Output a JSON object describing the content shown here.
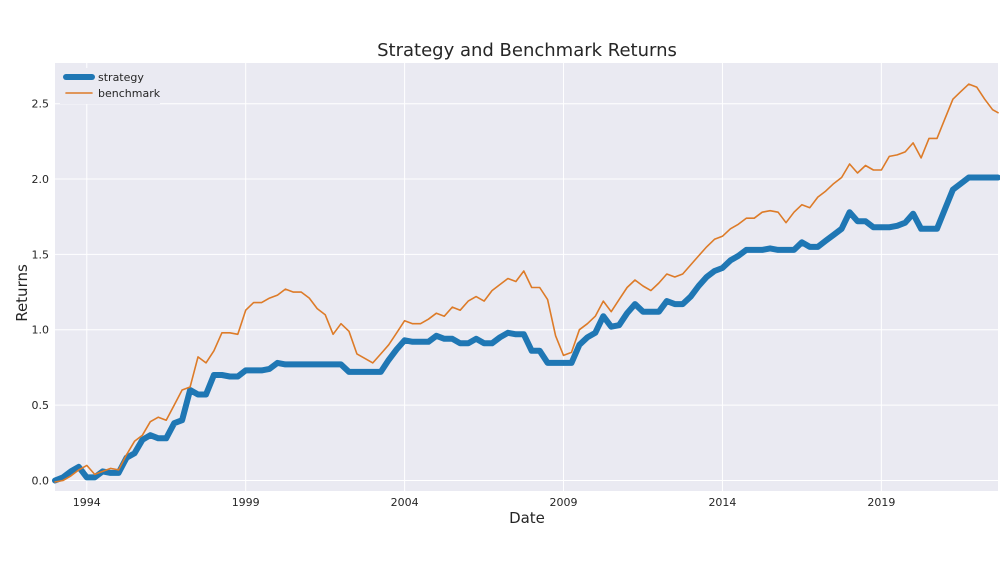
{
  "chart_data": {
    "type": "line",
    "title": "Strategy and Benchmark Returns",
    "xlabel": "Date",
    "ylabel": "Returns",
    "xlim": [
      1993.0,
      2022.67
    ],
    "ylim": [
      -0.07,
      2.77
    ],
    "xticks": [
      1994,
      1999,
      2004,
      2009,
      2014,
      2019
    ],
    "xtick_labels": [
      "1994",
      "1999",
      "2004",
      "2009",
      "2014",
      "2019"
    ],
    "yticks": [
      0.0,
      0.5,
      1.0,
      1.5,
      2.0,
      2.5
    ],
    "ytick_labels": [
      "0.0",
      "0.5",
      "1.0",
      "1.5",
      "2.0",
      "2.5"
    ],
    "grid": true,
    "legend_position": "top-left",
    "background": "#eaeaf2",
    "series": [
      {
        "name": "strategy",
        "color": "#1f77b4",
        "x": [
          1993.0,
          1993.25,
          1993.5,
          1993.75,
          1994.0,
          1994.25,
          1994.5,
          1994.75,
          1995.0,
          1995.25,
          1995.5,
          1995.75,
          1996.0,
          1996.25,
          1996.5,
          1996.75,
          1997.0,
          1997.25,
          1997.5,
          1997.75,
          1998.0,
          1998.25,
          1998.5,
          1998.75,
          1999.0,
          1999.25,
          1999.5,
          1999.75,
          2000.0,
          2000.25,
          2000.5,
          2000.75,
          2001.0,
          2001.25,
          2001.5,
          2001.75,
          2002.0,
          2002.25,
          2002.5,
          2002.75,
          2003.0,
          2003.25,
          2003.5,
          2003.75,
          2004.0,
          2004.25,
          2004.5,
          2004.75,
          2005.0,
          2005.25,
          2005.5,
          2005.75,
          2006.0,
          2006.25,
          2006.5,
          2006.75,
          2007.0,
          2007.25,
          2007.5,
          2007.75,
          2008.0,
          2008.25,
          2008.5,
          2008.75,
          2009.0,
          2009.25,
          2009.5,
          2009.75,
          2010.0,
          2010.25,
          2010.5,
          2010.75,
          2011.0,
          2011.25,
          2011.5,
          2011.75,
          2012.0,
          2012.25,
          2012.5,
          2012.75,
          2013.0,
          2013.25,
          2013.5,
          2013.75,
          2014.0,
          2014.25,
          2014.5,
          2014.75,
          2015.0,
          2015.25,
          2015.5,
          2015.75,
          2016.0,
          2016.25,
          2016.5,
          2016.75,
          2017.0,
          2017.25,
          2017.5,
          2017.75,
          2018.0,
          2018.25,
          2018.5,
          2018.75,
          2019.0,
          2019.25,
          2019.5,
          2019.75,
          2020.0,
          2020.25,
          2020.5,
          2020.75,
          2021.0,
          2021.25,
          2021.5,
          2021.75,
          2022.0,
          2022.25,
          2022.5,
          2022.67
        ],
        "values": [
          0.0,
          0.02,
          0.06,
          0.09,
          0.02,
          0.02,
          0.06,
          0.05,
          0.05,
          0.15,
          0.18,
          0.27,
          0.3,
          0.28,
          0.28,
          0.38,
          0.4,
          0.6,
          0.57,
          0.57,
          0.7,
          0.7,
          0.69,
          0.69,
          0.73,
          0.73,
          0.73,
          0.74,
          0.78,
          0.77,
          0.77,
          0.77,
          0.77,
          0.77,
          0.77,
          0.77,
          0.77,
          0.72,
          0.72,
          0.72,
          0.72,
          0.72,
          0.8,
          0.87,
          0.93,
          0.92,
          0.92,
          0.92,
          0.96,
          0.94,
          0.94,
          0.91,
          0.91,
          0.94,
          0.91,
          0.91,
          0.95,
          0.98,
          0.97,
          0.97,
          0.86,
          0.86,
          0.78,
          0.78,
          0.78,
          0.78,
          0.9,
          0.95,
          0.98,
          1.09,
          1.02,
          1.03,
          1.11,
          1.17,
          1.12,
          1.12,
          1.12,
          1.19,
          1.17,
          1.17,
          1.22,
          1.29,
          1.35,
          1.39,
          1.41,
          1.46,
          1.49,
          1.53,
          1.53,
          1.53,
          1.54,
          1.53,
          1.53,
          1.53,
          1.58,
          1.55,
          1.55,
          1.59,
          1.63,
          1.67,
          1.78,
          1.72,
          1.72,
          1.68,
          1.68,
          1.68,
          1.69,
          1.71,
          1.77,
          1.67,
          1.67,
          1.67,
          1.8,
          1.93,
          1.97,
          2.01,
          2.01,
          2.01,
          2.01,
          2.01
        ]
      },
      {
        "name": "benchmark",
        "color": "#dd7b28",
        "x": [
          1993.0,
          1993.25,
          1993.5,
          1993.75,
          1994.0,
          1994.25,
          1994.5,
          1994.75,
          1995.0,
          1995.25,
          1995.5,
          1995.75,
          1996.0,
          1996.25,
          1996.5,
          1996.75,
          1997.0,
          1997.25,
          1997.5,
          1997.75,
          1998.0,
          1998.25,
          1998.5,
          1998.75,
          1999.0,
          1999.25,
          1999.5,
          1999.75,
          2000.0,
          2000.25,
          2000.5,
          2000.75,
          2001.0,
          2001.25,
          2001.5,
          2001.75,
          2002.0,
          2002.25,
          2002.5,
          2002.75,
          2003.0,
          2003.25,
          2003.5,
          2003.75,
          2004.0,
          2004.25,
          2004.5,
          2004.75,
          2005.0,
          2005.25,
          2005.5,
          2005.75,
          2006.0,
          2006.25,
          2006.5,
          2006.75,
          2007.0,
          2007.25,
          2007.5,
          2007.75,
          2008.0,
          2008.25,
          2008.5,
          2008.75,
          2009.0,
          2009.25,
          2009.5,
          2009.75,
          2010.0,
          2010.25,
          2010.5,
          2010.75,
          2011.0,
          2011.25,
          2011.5,
          2011.75,
          2012.0,
          2012.25,
          2012.5,
          2012.75,
          2013.0,
          2013.25,
          2013.5,
          2013.75,
          2014.0,
          2014.25,
          2014.5,
          2014.75,
          2015.0,
          2015.25,
          2015.5,
          2015.75,
          2016.0,
          2016.25,
          2016.5,
          2016.75,
          2017.0,
          2017.25,
          2017.5,
          2017.75,
          2018.0,
          2018.25,
          2018.5,
          2018.75,
          2019.0,
          2019.25,
          2019.5,
          2019.75,
          2020.0,
          2020.25,
          2020.5,
          2020.75,
          2021.0,
          2021.25,
          2021.5,
          2021.75,
          2022.0,
          2022.25,
          2022.5,
          2022.67
        ],
        "values": [
          -0.01,
          0.0,
          0.03,
          0.07,
          0.1,
          0.04,
          0.06,
          0.08,
          0.07,
          0.17,
          0.26,
          0.3,
          0.39,
          0.42,
          0.4,
          0.5,
          0.6,
          0.62,
          0.82,
          0.78,
          0.86,
          0.98,
          0.98,
          0.97,
          1.13,
          1.18,
          1.18,
          1.21,
          1.23,
          1.27,
          1.25,
          1.25,
          1.21,
          1.14,
          1.1,
          0.97,
          1.04,
          0.99,
          0.84,
          0.81,
          0.78,
          0.84,
          0.9,
          0.98,
          1.06,
          1.04,
          1.04,
          1.07,
          1.11,
          1.09,
          1.15,
          1.13,
          1.19,
          1.22,
          1.19,
          1.26,
          1.3,
          1.34,
          1.32,
          1.39,
          1.28,
          1.28,
          1.2,
          0.96,
          0.83,
          0.85,
          1.0,
          1.04,
          1.09,
          1.19,
          1.12,
          1.2,
          1.28,
          1.33,
          1.29,
          1.26,
          1.31,
          1.37,
          1.35,
          1.37,
          1.43,
          1.49,
          1.55,
          1.6,
          1.62,
          1.67,
          1.7,
          1.74,
          1.74,
          1.78,
          1.79,
          1.78,
          1.71,
          1.78,
          1.83,
          1.81,
          1.88,
          1.92,
          1.97,
          2.01,
          2.1,
          2.04,
          2.09,
          2.06,
          2.06,
          2.15,
          2.16,
          2.18,
          2.24,
          2.14,
          2.27,
          2.27,
          2.4,
          2.53,
          2.58,
          2.63,
          2.61,
          2.53,
          2.46,
          2.44
        ]
      }
    ]
  }
}
